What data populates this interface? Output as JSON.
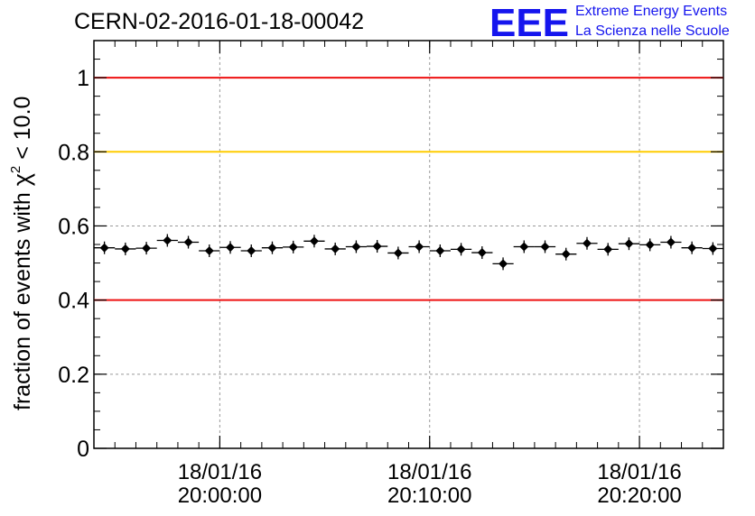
{
  "header": {
    "run_title": "CERN-02-2016-01-18-00042"
  },
  "logo": {
    "mark": "EEE",
    "line1": "Extreme Energy Events",
    "line2": "La Scienza nelle Scuole",
    "color": "#1515ee"
  },
  "chart_data": {
    "type": "scatter",
    "title": "CERN-02-2016-01-18-00042",
    "ylabel": {
      "prefix": "fraction of events with ",
      "symbol": "χ",
      "sup": "2",
      "suffix": " < 10.0"
    },
    "xlabel": "",
    "ylim": [
      0,
      1.1
    ],
    "xlim_minutes_after": {
      "start": "2016-01-18 19:54:00",
      "end": "2016-01-18 20:24:00"
    },
    "yticks": [
      {
        "value": 0,
        "label": "0"
      },
      {
        "value": 0.2,
        "label": "0.2"
      },
      {
        "value": 0.4,
        "label": "0.4"
      },
      {
        "value": 0.6,
        "label": "0.6"
      },
      {
        "value": 0.8,
        "label": "0.8"
      },
      {
        "value": 1,
        "label": "1"
      }
    ],
    "xticks": [
      {
        "date": "18/01/16",
        "time": "20:00:00"
      },
      {
        "date": "18/01/16",
        "time": "20:10:00"
      },
      {
        "date": "18/01/16",
        "time": "20:20:00"
      }
    ],
    "grid": true,
    "reference_lines": [
      {
        "y": 1.0,
        "color": "#ee1111"
      },
      {
        "y": 0.8,
        "color": "#ffcc00"
      },
      {
        "y": 0.4,
        "color": "#ee1111"
      }
    ],
    "series": [
      {
        "marker": "diamond",
        "color": "#000000",
        "x": [
          "19:54:30",
          "19:55:30",
          "19:56:30",
          "19:57:30",
          "19:58:30",
          "19:59:30",
          "20:00:30",
          "20:01:30",
          "20:02:30",
          "20:03:30",
          "20:04:30",
          "20:05:30",
          "20:06:30",
          "20:07:30",
          "20:08:30",
          "20:09:30",
          "20:10:30",
          "20:11:30",
          "20:12:30",
          "20:13:30",
          "20:14:30",
          "20:15:30",
          "20:16:30",
          "20:17:30",
          "20:18:30",
          "20:19:30",
          "20:20:30",
          "20:21:30",
          "20:22:30",
          "20:23:30"
        ],
        "y": [
          0.541,
          0.538,
          0.54,
          0.561,
          0.556,
          0.533,
          0.542,
          0.533,
          0.541,
          0.543,
          0.559,
          0.538,
          0.544,
          0.545,
          0.527,
          0.544,
          0.533,
          0.537,
          0.528,
          0.498,
          0.544,
          0.544,
          0.524,
          0.553,
          0.537,
          0.552,
          0.549,
          0.556,
          0.541,
          0.539
        ]
      }
    ]
  }
}
